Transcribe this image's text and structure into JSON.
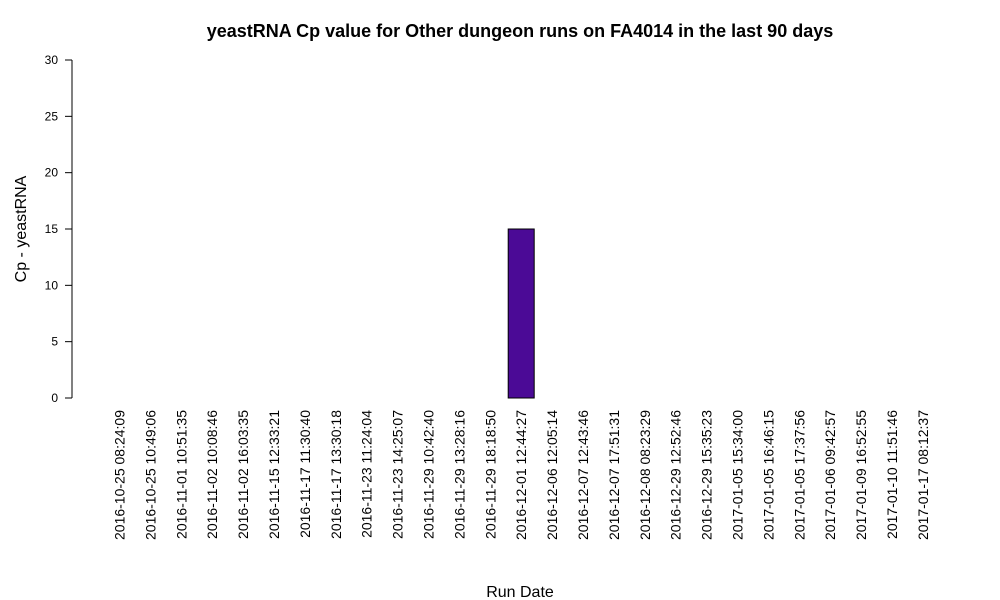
{
  "chart_data": {
    "type": "bar",
    "title": "yeastRNA Cp value for Other dungeon runs on FA4014 in the last 90 days",
    "xlabel": "Run Date",
    "ylabel": "Cp - yeastRNA",
    "ylim": [
      0,
      30
    ],
    "yticks": [
      0,
      5,
      10,
      15,
      20,
      25,
      30
    ],
    "grid": false,
    "bar_color": "#4b0a96",
    "categories": [
      "2016-10-25 08:24:09",
      "2016-10-25 10:49:06",
      "2016-11-01 10:51:35",
      "2016-11-02 10:08:46",
      "2016-11-02 16:03:35",
      "2016-11-15 12:33:21",
      "2016-11-17 11:30:40",
      "2016-11-17 13:30:18",
      "2016-11-23 11:24:04",
      "2016-11-23 14:25:07",
      "2016-11-29 10:42:40",
      "2016-11-29 13:28:16",
      "2016-11-29 18:18:50",
      "2016-12-01 12:44:27",
      "2016-12-06 12:05:14",
      "2016-12-07 12:43:46",
      "2016-12-07 17:51:31",
      "2016-12-08 08:23:29",
      "2016-12-29 12:52:46",
      "2016-12-29 15:35:23",
      "2017-01-05 15:34:00",
      "2017-01-05 16:46:15",
      "2017-01-05 17:37:56",
      "2017-01-06 09:42:57",
      "2017-01-09 16:52:55",
      "2017-01-10 11:51:46",
      "2017-01-17 08:12:37"
    ],
    "values": [
      0,
      0,
      0,
      0,
      0,
      0,
      0,
      0,
      0,
      0,
      0,
      0,
      0,
      15,
      0,
      0,
      0,
      0,
      0,
      0,
      0,
      0,
      0,
      0,
      0,
      0,
      0
    ]
  }
}
